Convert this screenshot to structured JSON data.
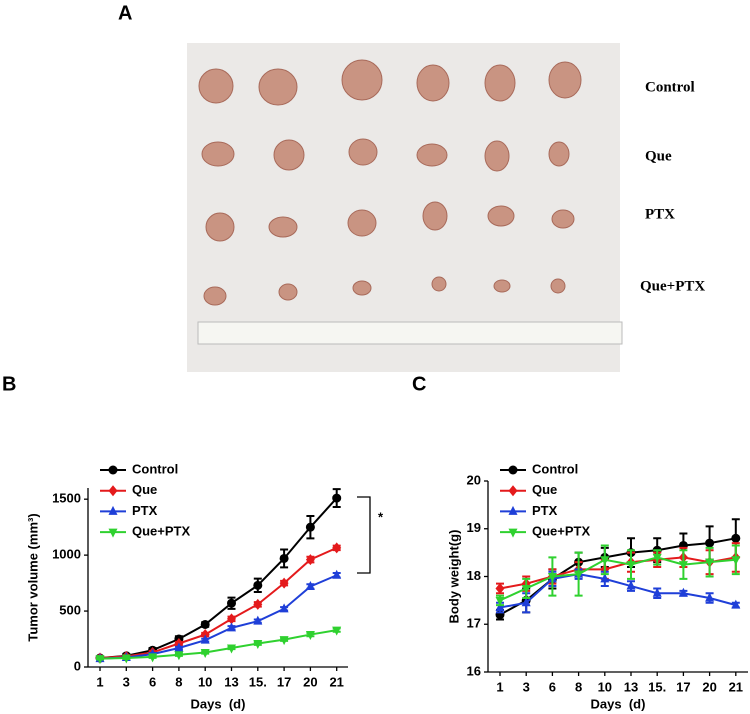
{
  "photo": {
    "panel_label": "A",
    "row_labels": [
      "Control",
      "Que",
      "PTX",
      "Que+PTX"
    ]
  },
  "chart_data": [
    {
      "type": "line",
      "panel_label": "B",
      "x_label": "Days  (d)",
      "y_label": "Tumor volume (mm³)",
      "annotation": "*",
      "categories": [
        "1",
        "3",
        "6",
        "8",
        "10",
        "13",
        "15.",
        "17",
        "20",
        "21"
      ],
      "ylim": [
        0,
        1600
      ],
      "yticks": [
        0,
        500,
        1000,
        1500
      ],
      "legend": "upper left",
      "series": [
        {
          "name": "Control",
          "color": "#000000",
          "marker": "o",
          "values": [
            80,
            100,
            150,
            250,
            380,
            570,
            730,
            970,
            1250,
            1510
          ],
          "errors": [
            10,
            15,
            20,
            25,
            20,
            50,
            60,
            80,
            100,
            80
          ]
        },
        {
          "name": "Que",
          "color": "#e41a1c",
          "marker": "D",
          "values": [
            80,
            95,
            130,
            210,
            290,
            430,
            560,
            750,
            960,
            1065
          ],
          "errors": [
            8,
            10,
            12,
            15,
            15,
            20,
            20,
            20,
            25,
            20
          ]
        },
        {
          "name": "PTX",
          "color": "#1f3fd8",
          "marker": "^",
          "values": [
            75,
            85,
            115,
            170,
            240,
            350,
            410,
            520,
            720,
            820
          ],
          "errors": [
            8,
            8,
            10,
            10,
            12,
            15,
            15,
            15,
            20,
            20
          ]
        },
        {
          "name": "Que+PTX",
          "color": "#2fd12f",
          "marker": "v",
          "values": [
            75,
            80,
            90,
            110,
            130,
            170,
            210,
            245,
            290,
            330
          ],
          "errors": [
            8,
            8,
            8,
            10,
            10,
            10,
            12,
            12,
            15,
            15
          ]
        }
      ]
    },
    {
      "type": "line",
      "panel_label": "C",
      "x_label": "Days  (d)",
      "y_label": "Body weight(g)",
      "categories": [
        "1",
        "3",
        "6",
        "8",
        "10",
        "13",
        "15.",
        "17",
        "20",
        "21"
      ],
      "ylim": [
        16,
        20
      ],
      "yticks": [
        16,
        17,
        18,
        19,
        20
      ],
      "legend": "upper left",
      "series": [
        {
          "name": "Control",
          "color": "#000000",
          "marker": "o",
          "values": [
            17.2,
            17.5,
            17.95,
            18.3,
            18.4,
            18.5,
            18.55,
            18.65,
            18.7,
            18.8
          ],
          "errors": [
            0.1,
            0.25,
            0.2,
            0.2,
            0.2,
            0.3,
            0.25,
            0.25,
            0.35,
            0.4
          ]
        },
        {
          "name": "Que",
          "color": "#e41a1c",
          "marker": "D",
          "values": [
            17.75,
            17.85,
            18.0,
            18.15,
            18.15,
            18.3,
            18.35,
            18.4,
            18.3,
            18.4
          ],
          "errors": [
            0.1,
            0.15,
            0.15,
            0.15,
            0.2,
            0.2,
            0.15,
            0.2,
            0.25,
            0.3
          ]
        },
        {
          "name": "PTX",
          "color": "#1f3fd8",
          "marker": "^",
          "values": [
            17.35,
            17.45,
            17.95,
            18.05,
            17.95,
            17.8,
            17.65,
            17.65,
            17.55,
            17.4
          ],
          "errors": [
            0.1,
            0.2,
            0.15,
            0.1,
            0.15,
            0.1,
            0.1,
            0.05,
            0.1,
            0.05
          ]
        },
        {
          "name": "Que+PTX",
          "color": "#2fd12f",
          "marker": "v",
          "values": [
            17.5,
            17.75,
            18.0,
            18.05,
            18.35,
            18.25,
            18.4,
            18.25,
            18.3,
            18.35
          ],
          "errors": [
            0.1,
            0.2,
            0.4,
            0.45,
            0.3,
            0.3,
            0.15,
            0.3,
            0.3,
            0.3
          ]
        }
      ]
    }
  ]
}
